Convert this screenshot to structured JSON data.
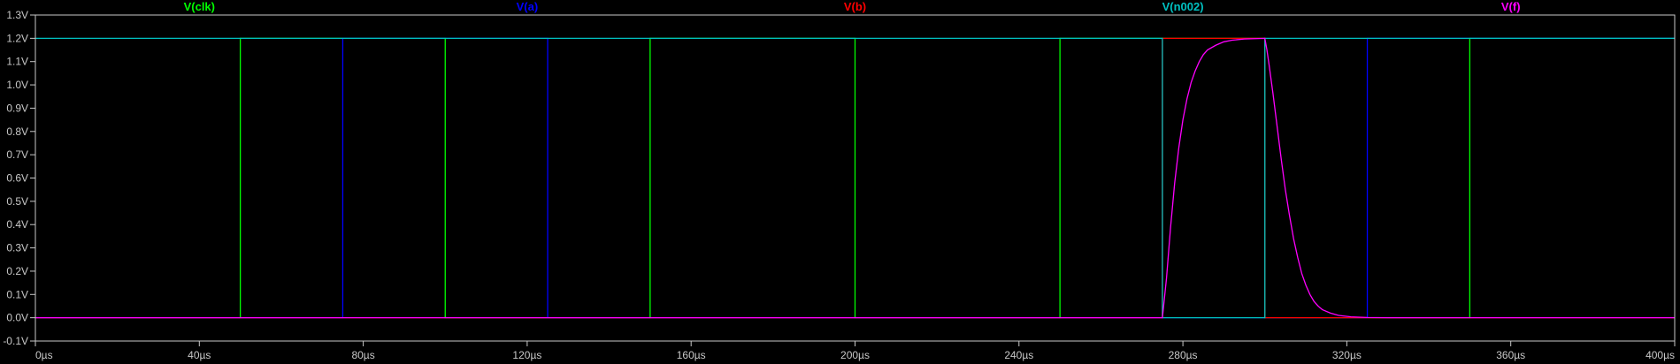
{
  "chart_data": {
    "type": "line",
    "title": "",
    "xlabel": "",
    "ylabel": "",
    "xlim": [
      0,
      400
    ],
    "ylim": [
      -0.1,
      1.3
    ],
    "grid": false,
    "legend_position": "top",
    "x_ticks": [
      {
        "value": 0,
        "label": "0µs"
      },
      {
        "value": 40,
        "label": "40µs"
      },
      {
        "value": 80,
        "label": "80µs"
      },
      {
        "value": 120,
        "label": "120µs"
      },
      {
        "value": 160,
        "label": "160µs"
      },
      {
        "value": 200,
        "label": "200µs"
      },
      {
        "value": 240,
        "label": "240µs"
      },
      {
        "value": 280,
        "label": "280µs"
      },
      {
        "value": 320,
        "label": "320µs"
      },
      {
        "value": 360,
        "label": "360µs"
      },
      {
        "value": 400,
        "label": "400µs"
      }
    ],
    "y_ticks": [
      {
        "value": 1.3,
        "label": "1.3V"
      },
      {
        "value": 1.2,
        "label": "1.2V"
      },
      {
        "value": 1.1,
        "label": "1.1V"
      },
      {
        "value": 1.0,
        "label": "1.0V"
      },
      {
        "value": 0.9,
        "label": "0.9V"
      },
      {
        "value": 0.8,
        "label": "0.8V"
      },
      {
        "value": 0.7,
        "label": "0.7V"
      },
      {
        "value": 0.6,
        "label": "0.6V"
      },
      {
        "value": 0.5,
        "label": "0.5V"
      },
      {
        "value": 0.4,
        "label": "0.4V"
      },
      {
        "value": 0.3,
        "label": "0.3V"
      },
      {
        "value": 0.2,
        "label": "0.2V"
      },
      {
        "value": 0.1,
        "label": "0.1V"
      },
      {
        "value": 0.0,
        "label": "0.0V"
      },
      {
        "value": -0.1,
        "label": "-0.1V"
      }
    ],
    "series": [
      {
        "name": "V(clk)",
        "color": "#00ff00",
        "points": [
          [
            0,
            0
          ],
          [
            50,
            0
          ],
          [
            50,
            1.2
          ],
          [
            100,
            1.2
          ],
          [
            100,
            0
          ],
          [
            150,
            0
          ],
          [
            150,
            1.2
          ],
          [
            200,
            1.2
          ],
          [
            200,
            0
          ],
          [
            250,
            0
          ],
          [
            250,
            1.2
          ],
          [
            300,
            1.2
          ],
          [
            300,
            0
          ],
          [
            350,
            0
          ],
          [
            350,
            1.2
          ],
          [
            400,
            1.2
          ]
        ]
      },
      {
        "name": "V(a)",
        "color": "#0000ff",
        "points": [
          [
            0,
            0
          ],
          [
            75,
            0
          ],
          [
            75,
            1.2
          ],
          [
            125,
            1.2
          ],
          [
            125,
            0
          ],
          [
            325,
            0
          ],
          [
            325,
            1.2
          ],
          [
            400,
            1.2
          ]
        ]
      },
      {
        "name": "V(b)",
        "color": "#ff0000",
        "points": [
          [
            0,
            0
          ],
          [
            275,
            0
          ],
          [
            275,
            1.2
          ],
          [
            300,
            1.2
          ],
          [
            300,
            0
          ],
          [
            400,
            0
          ]
        ]
      },
      {
        "name": "V(n002)",
        "color": "#00c0c0",
        "points": [
          [
            0,
            1.2
          ],
          [
            275,
            1.2
          ],
          [
            275,
            0
          ],
          [
            300,
            0
          ],
          [
            300,
            1.2
          ],
          [
            400,
            1.2
          ]
        ]
      },
      {
        "name": "V(f)",
        "color": "#ff00ff",
        "points": [
          [
            0,
            0
          ],
          [
            275,
            0
          ],
          [
            276,
            0.17
          ],
          [
            277,
            0.39
          ],
          [
            278,
            0.58
          ],
          [
            279,
            0.73
          ],
          [
            280,
            0.85
          ],
          [
            281,
            0.94
          ],
          [
            282,
            1.01
          ],
          [
            283,
            1.06
          ],
          [
            284,
            1.1
          ],
          [
            285,
            1.13
          ],
          [
            286,
            1.15
          ],
          [
            288,
            1.17
          ],
          [
            290,
            1.185
          ],
          [
            292,
            1.192
          ],
          [
            295,
            1.197
          ],
          [
            300,
            1.2
          ],
          [
            300.5,
            1.15
          ],
          [
            301,
            1.09
          ],
          [
            302,
            0.96
          ],
          [
            303,
            0.82
          ],
          [
            304,
            0.68
          ],
          [
            305,
            0.55
          ],
          [
            306,
            0.44
          ],
          [
            307,
            0.34
          ],
          [
            308,
            0.26
          ],
          [
            309,
            0.19
          ],
          [
            310,
            0.14
          ],
          [
            311,
            0.1
          ],
          [
            312,
            0.07
          ],
          [
            313,
            0.05
          ],
          [
            314,
            0.035
          ],
          [
            316,
            0.02
          ],
          [
            318,
            0.01
          ],
          [
            321,
            0.004
          ],
          [
            325,
            0.001
          ],
          [
            330,
            0
          ],
          [
            400,
            0
          ]
        ]
      }
    ]
  }
}
